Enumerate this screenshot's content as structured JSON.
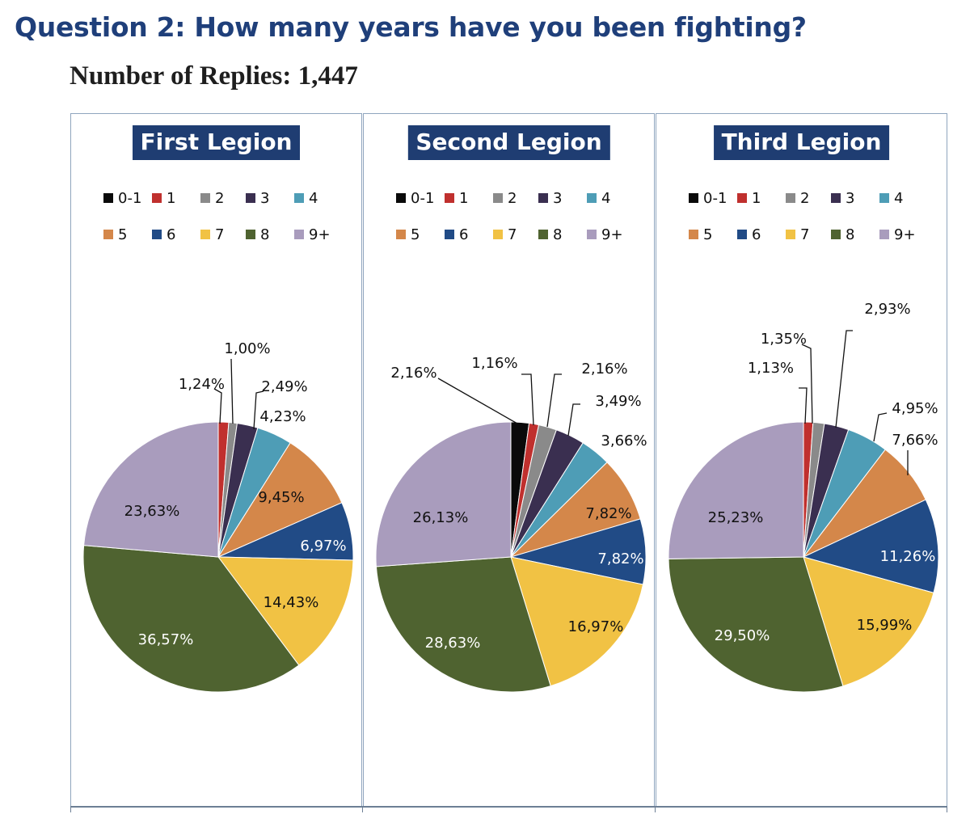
{
  "header": {
    "title": "Question 2: How many years have you been fighting?",
    "subtitle": "Number of Replies: 1,447"
  },
  "colors": {
    "0-1": "#0a0a0a",
    "1": "#c0302e",
    "2": "#8a8a8a",
    "3": "#3a2f50",
    "4": "#4e9db6",
    "5": "#d4874a",
    "6": "#214b86",
    "7": "#f1c244",
    "8": "#4f6330",
    "9+": "#a99cbd"
  },
  "chart_data": [
    {
      "type": "pie",
      "title": "First Legion",
      "categories": [
        "0-1",
        "1",
        "2",
        "3",
        "4",
        "5",
        "6",
        "7",
        "8",
        "9+"
      ],
      "values": [
        0.0,
        1.24,
        1.0,
        2.49,
        4.23,
        9.45,
        6.97,
        14.43,
        36.57,
        23.63
      ],
      "labels": [
        "",
        "1,24%",
        "1,00%",
        "2,49%",
        "4,23%",
        "9,45%",
        "6,97%",
        "14,43%",
        "36,57%",
        "23,63%"
      ],
      "legend": "top"
    },
    {
      "type": "pie",
      "title": "Second Legion",
      "categories": [
        "0-1",
        "1",
        "2",
        "3",
        "4",
        "5",
        "6",
        "7",
        "8",
        "9+"
      ],
      "values": [
        2.16,
        1.16,
        2.16,
        3.49,
        3.66,
        7.82,
        7.82,
        16.97,
        28.63,
        26.13
      ],
      "labels": [
        "2,16%",
        "1,16%",
        "2,16%",
        "3,49%",
        "3,66%",
        "7,82%",
        "7,82%",
        "16,97%",
        "28,63%",
        "26,13%"
      ],
      "legend": "top"
    },
    {
      "type": "pie",
      "title": "Third Legion",
      "categories": [
        "0-1",
        "1",
        "2",
        "3",
        "4",
        "5",
        "6",
        "7",
        "8",
        "9+"
      ],
      "values": [
        0.0,
        1.13,
        1.35,
        2.93,
        4.95,
        7.66,
        11.26,
        15.99,
        29.5,
        25.23
      ],
      "labels": [
        "",
        "1,13%",
        "1,35%",
        "2,93%",
        "4,95%",
        "7,66%",
        "11,26%",
        "15,99%",
        "29,50%",
        "25,23%"
      ],
      "legend": "top"
    }
  ]
}
